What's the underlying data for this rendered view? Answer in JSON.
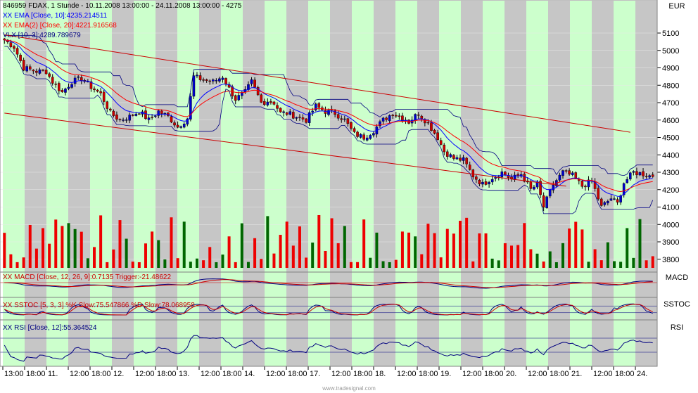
{
  "header": {
    "title": "846959  FDAX, 1 Stunde - 10.11.2008 13:00:00 - 24.11.2008 13:00:00 - 4275",
    "ema10": "XX EMA [Close, 10]:4235.214511",
    "ema20": "XX EMA(2) [Close, 20]:4221.916568",
    "vlx": "VLX [10, 3]:4289.789679"
  },
  "currency_label": "EUR",
  "indicators": {
    "macd": {
      "legend": "XX MACD [Close, 12, 26, 9]:0.7135  Trigger:-21.48622",
      "label": "MACD"
    },
    "sstoc": {
      "legend": "XX SSTOC [5, 3, 3] %K Slow:75.547866  %D Slow:78.068958",
      "label": "SSTOC"
    },
    "rsi": {
      "legend": "XX RSI [Close, 12]:55.364524",
      "label": "RSI"
    }
  },
  "watermark": "www.tradesignal.com",
  "colors": {
    "bg_green": "#ccffcc",
    "bg_gray": "#c6c6c6",
    "candle_up": "#0000cc",
    "candle_down": "#cc0000",
    "ema10": "#0000ff",
    "ema20": "#ff0000",
    "vol_up": "#006600",
    "vol_down": "#ee0000"
  },
  "chart_data": {
    "type": "candlestick",
    "title": "846959 FDAX, 1 Stunde",
    "ylabel": "EUR",
    "ylim": [
      3720,
      5210
    ],
    "yticks": [
      3800,
      3900,
      4000,
      4100,
      4200,
      4300,
      4400,
      4500,
      4600,
      4700,
      4800,
      4900,
      5000,
      5100
    ],
    "xtick_labels": [
      "13:00",
      "18:00",
      "11.",
      "12:00",
      "18:00",
      "12.",
      "12:00",
      "18:00",
      "13.",
      "12:00",
      "18:00",
      "14.",
      "12:00",
      "18:00",
      "17.",
      "12:00",
      "18:00",
      "18.",
      "12:00",
      "18:00",
      "19.",
      "12:00",
      "18:00",
      "20.",
      "12:00",
      "18:00",
      "21.",
      "12:00",
      "18:00",
      "24."
    ],
    "close_anchors": [
      [
        0,
        5060
      ],
      [
        3,
        5020
      ],
      [
        6,
        4900
      ],
      [
        10,
        4880
      ],
      [
        13,
        4880
      ],
      [
        15,
        4820
      ],
      [
        18,
        4760
      ],
      [
        21,
        4820
      ],
      [
        24,
        4840
      ],
      [
        27,
        4790
      ],
      [
        30,
        4750
      ],
      [
        33,
        4640
      ],
      [
        36,
        4600
      ],
      [
        39,
        4620
      ],
      [
        42,
        4650
      ],
      [
        45,
        4600
      ],
      [
        48,
        4650
      ],
      [
        51,
        4620
      ],
      [
        54,
        4560
      ],
      [
        57,
        4610
      ],
      [
        59,
        4850
      ],
      [
        62,
        4830
      ],
      [
        65,
        4820
      ],
      [
        68,
        4850
      ],
      [
        70,
        4780
      ],
      [
        72,
        4720
      ],
      [
        75,
        4760
      ],
      [
        77,
        4820
      ],
      [
        80,
        4700
      ],
      [
        82,
        4710
      ],
      [
        84,
        4700
      ],
      [
        86,
        4640
      ],
      [
        88,
        4640
      ],
      [
        91,
        4620
      ],
      [
        94,
        4600
      ],
      [
        97,
        4680
      ],
      [
        100,
        4650
      ],
      [
        103,
        4640
      ],
      [
        106,
        4600
      ],
      [
        109,
        4520
      ],
      [
        112,
        4500
      ],
      [
        115,
        4540
      ],
      [
        118,
        4600
      ],
      [
        121,
        4640
      ],
      [
        123,
        4620
      ],
      [
        126,
        4590
      ],
      [
        129,
        4640
      ],
      [
        132,
        4580
      ],
      [
        135,
        4500
      ],
      [
        137,
        4420
      ],
      [
        140,
        4380
      ],
      [
        143,
        4370
      ],
      [
        146,
        4280
      ],
      [
        149,
        4230
      ],
      [
        152,
        4270
      ],
      [
        155,
        4300
      ],
      [
        158,
        4260
      ],
      [
        161,
        4290
      ],
      [
        164,
        4200
      ],
      [
        166,
        4230
      ],
      [
        168,
        4100
      ],
      [
        171,
        4230
      ],
      [
        174,
        4300
      ],
      [
        177,
        4280
      ],
      [
        180,
        4220
      ],
      [
        183,
        4250
      ],
      [
        186,
        4100
      ],
      [
        189,
        4150
      ],
      [
        191,
        4120
      ],
      [
        193,
        4240
      ],
      [
        196,
        4300
      ],
      [
        199,
        4290
      ],
      [
        202,
        4275
      ]
    ],
    "ema10_last": 4235.214511,
    "ema20_last": 4221.916568,
    "vlx_last": 4289.789679,
    "trendlines": [
      {
        "from": [
          0,
          5090
        ],
        "to": [
          195,
          4530
        ]
      },
      {
        "from": [
          0,
          4640
        ],
        "to": [
          175,
          4220
        ]
      }
    ],
    "macd": {
      "value": 0.7135,
      "trigger": -21.48622
    },
    "sstoc": {
      "k_slow": 75.547866,
      "d_slow": 78.068958
    },
    "rsi": {
      "value": 55.364524
    }
  }
}
